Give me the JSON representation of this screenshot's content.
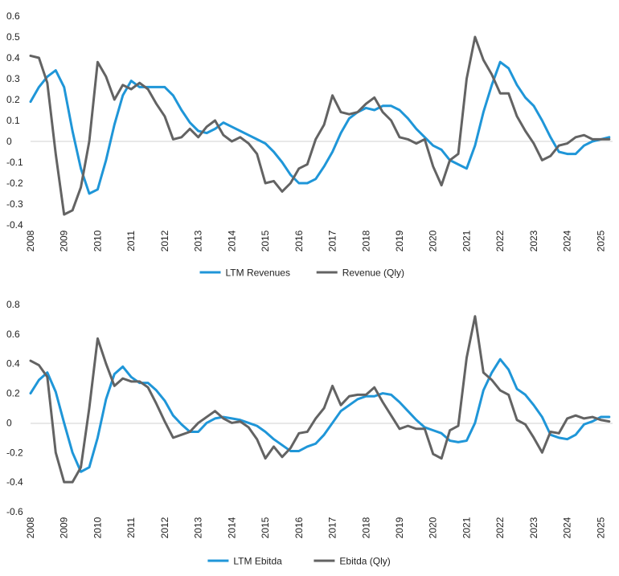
{
  "chart_data": [
    {
      "type": "line",
      "title": "",
      "xlabel": "",
      "ylabel": "",
      "ylim": [
        -0.4,
        0.6
      ],
      "yticks": [
        -0.4,
        -0.3,
        -0.2,
        -0.1,
        0,
        0.1,
        0.2,
        0.3,
        0.4,
        0.5,
        0.6
      ],
      "ytick_labels": [
        "-0.4",
        "-0.3",
        "-0.2",
        "-0.1",
        "0",
        "0.1",
        "0.2",
        "0.3",
        "0.4",
        "0.5",
        "0.6"
      ],
      "xlim": [
        2008.0,
        2025.35
      ],
      "xticks": [
        2008,
        2009,
        2010,
        2011,
        2012,
        2013,
        2014,
        2015,
        2016,
        2017,
        2018,
        2019,
        2020,
        2021,
        2022,
        2023,
        2024,
        2025
      ],
      "xtick_labels": [
        "2008",
        "2009",
        "2010",
        "2011",
        "2012",
        "2013",
        "2014",
        "2015",
        "2016",
        "2017",
        "2018",
        "2019",
        "2020",
        "2021",
        "2022",
        "2023",
        "2024",
        "2025"
      ],
      "grid": false,
      "legend_position": "bottom-center",
      "series": [
        {
          "name": "LTM Revenues",
          "color": "#1f96d8",
          "x": [
            2008.0,
            2008.25,
            2008.5,
            2008.75,
            2009.0,
            2009.25,
            2009.5,
            2009.75,
            2010.0,
            2010.25,
            2010.5,
            2010.75,
            2011.0,
            2011.25,
            2011.5,
            2011.75,
            2012.0,
            2012.25,
            2012.5,
            2012.75,
            2013.0,
            2013.25,
            2013.5,
            2013.75,
            2014.0,
            2014.25,
            2014.5,
            2014.75,
            2015.0,
            2015.25,
            2015.5,
            2015.75,
            2016.0,
            2016.25,
            2016.5,
            2016.75,
            2017.0,
            2017.25,
            2017.5,
            2017.75,
            2018.0,
            2018.25,
            2018.5,
            2018.75,
            2019.0,
            2019.25,
            2019.5,
            2019.75,
            2020.0,
            2020.25,
            2020.5,
            2020.75,
            2021.0,
            2021.25,
            2021.5,
            2021.75,
            2022.0,
            2022.25,
            2022.5,
            2022.75,
            2023.0,
            2023.25,
            2023.5,
            2023.75,
            2024.0,
            2024.25,
            2024.5,
            2024.75,
            2025.0,
            2025.25
          ],
          "y": [
            0.19,
            0.26,
            0.31,
            0.34,
            0.26,
            0.05,
            -0.13,
            -0.25,
            -0.23,
            -0.09,
            0.08,
            0.22,
            0.29,
            0.26,
            0.26,
            0.26,
            0.26,
            0.22,
            0.15,
            0.09,
            0.05,
            0.04,
            0.06,
            0.09,
            0.07,
            0.05,
            0.03,
            0.01,
            -0.01,
            -0.05,
            -0.1,
            -0.16,
            -0.2,
            -0.2,
            -0.18,
            -0.12,
            -0.05,
            0.04,
            0.11,
            0.14,
            0.16,
            0.15,
            0.17,
            0.17,
            0.15,
            0.11,
            0.06,
            0.02,
            -0.02,
            -0.04,
            -0.09,
            -0.11,
            -0.13,
            -0.02,
            0.14,
            0.27,
            0.38,
            0.35,
            0.27,
            0.21,
            0.17,
            0.1,
            0.02,
            -0.05,
            -0.06,
            -0.06,
            -0.02,
            0.0,
            0.01,
            0.02
          ]
        },
        {
          "name": "Revenue (Qly)",
          "color": "#636363",
          "x": [
            2008.0,
            2008.25,
            2008.5,
            2008.75,
            2009.0,
            2009.25,
            2009.5,
            2009.75,
            2010.0,
            2010.25,
            2010.5,
            2010.75,
            2011.0,
            2011.25,
            2011.5,
            2011.75,
            2012.0,
            2012.25,
            2012.5,
            2012.75,
            2013.0,
            2013.25,
            2013.5,
            2013.75,
            2014.0,
            2014.25,
            2014.5,
            2014.75,
            2015.0,
            2015.25,
            2015.5,
            2015.75,
            2016.0,
            2016.25,
            2016.5,
            2016.75,
            2017.0,
            2017.25,
            2017.5,
            2017.75,
            2018.0,
            2018.25,
            2018.5,
            2018.75,
            2019.0,
            2019.25,
            2019.5,
            2019.75,
            2020.0,
            2020.25,
            2020.5,
            2020.75,
            2021.0,
            2021.25,
            2021.5,
            2021.75,
            2022.0,
            2022.25,
            2022.5,
            2022.75,
            2023.0,
            2023.25,
            2023.5,
            2023.75,
            2024.0,
            2024.25,
            2024.5,
            2024.75,
            2025.0,
            2025.25
          ],
          "y": [
            0.41,
            0.4,
            0.28,
            -0.06,
            -0.35,
            -0.33,
            -0.22,
            0.0,
            0.38,
            0.31,
            0.2,
            0.27,
            0.25,
            0.28,
            0.25,
            0.18,
            0.12,
            0.01,
            0.02,
            0.06,
            0.02,
            0.07,
            0.1,
            0.03,
            0.0,
            0.02,
            -0.01,
            -0.06,
            -0.2,
            -0.19,
            -0.24,
            -0.2,
            -0.13,
            -0.11,
            0.01,
            0.08,
            0.22,
            0.14,
            0.13,
            0.14,
            0.18,
            0.21,
            0.14,
            0.1,
            0.02,
            0.01,
            -0.01,
            0.01,
            -0.12,
            -0.21,
            -0.09,
            -0.06,
            0.3,
            0.5,
            0.39,
            0.32,
            0.23,
            0.23,
            0.12,
            0.05,
            -0.01,
            -0.09,
            -0.07,
            -0.02,
            -0.01,
            0.02,
            0.03,
            0.01,
            0.01,
            0.01
          ]
        }
      ]
    },
    {
      "type": "line",
      "title": "",
      "xlabel": "",
      "ylabel": "",
      "ylim": [
        -0.6,
        0.8
      ],
      "yticks": [
        -0.6,
        -0.4,
        -0.2,
        0,
        0.2,
        0.4,
        0.6,
        0.8
      ],
      "ytick_labels": [
        "-0.6",
        "-0.4",
        "-0.2",
        "0",
        "0.2",
        "0.4",
        "0.6",
        "0.8"
      ],
      "xlim": [
        2008.0,
        2025.35
      ],
      "xticks": [
        2008,
        2009,
        2010,
        2011,
        2012,
        2013,
        2014,
        2015,
        2016,
        2017,
        2018,
        2019,
        2020,
        2021,
        2022,
        2023,
        2024,
        2025
      ],
      "xtick_labels": [
        "2008",
        "2009",
        "2010",
        "2011",
        "2012",
        "2013",
        "2014",
        "2015",
        "2016",
        "2017",
        "2018",
        "2019",
        "2020",
        "2021",
        "2022",
        "2023",
        "2024",
        "2025"
      ],
      "grid": false,
      "legend_position": "bottom-center",
      "series": [
        {
          "name": "LTM Ebitda",
          "color": "#1f96d8",
          "x": [
            2008.0,
            2008.25,
            2008.5,
            2008.75,
            2009.0,
            2009.25,
            2009.5,
            2009.75,
            2010.0,
            2010.25,
            2010.5,
            2010.75,
            2011.0,
            2011.25,
            2011.5,
            2011.75,
            2012.0,
            2012.25,
            2012.5,
            2012.75,
            2013.0,
            2013.25,
            2013.5,
            2013.75,
            2014.0,
            2014.25,
            2014.5,
            2014.75,
            2015.0,
            2015.25,
            2015.5,
            2015.75,
            2016.0,
            2016.25,
            2016.5,
            2016.75,
            2017.0,
            2017.25,
            2017.5,
            2017.75,
            2018.0,
            2018.25,
            2018.5,
            2018.75,
            2019.0,
            2019.25,
            2019.5,
            2019.75,
            2020.0,
            2020.25,
            2020.5,
            2020.75,
            2021.0,
            2021.25,
            2021.5,
            2021.75,
            2022.0,
            2022.25,
            2022.5,
            2022.75,
            2023.0,
            2023.25,
            2023.5,
            2023.75,
            2024.0,
            2024.25,
            2024.5,
            2024.75,
            2025.0,
            2025.25
          ],
          "y": [
            0.2,
            0.29,
            0.34,
            0.21,
            0.0,
            -0.2,
            -0.33,
            -0.3,
            -0.1,
            0.16,
            0.33,
            0.38,
            0.31,
            0.27,
            0.27,
            0.22,
            0.15,
            0.05,
            -0.01,
            -0.06,
            -0.06,
            0.0,
            0.03,
            0.04,
            0.03,
            0.02,
            0.0,
            -0.02,
            -0.06,
            -0.11,
            -0.15,
            -0.19,
            -0.19,
            -0.16,
            -0.14,
            -0.08,
            0.0,
            0.08,
            0.12,
            0.16,
            0.18,
            0.18,
            0.2,
            0.19,
            0.14,
            0.08,
            0.02,
            -0.03,
            -0.05,
            -0.07,
            -0.12,
            -0.13,
            -0.12,
            0.0,
            0.22,
            0.34,
            0.43,
            0.36,
            0.23,
            0.19,
            0.12,
            0.04,
            -0.08,
            -0.1,
            -0.11,
            -0.08,
            -0.01,
            0.01,
            0.04,
            0.04
          ]
        },
        {
          "name": "Ebitda (Qly)",
          "color": "#636363",
          "x": [
            2008.0,
            2008.25,
            2008.5,
            2008.75,
            2009.0,
            2009.25,
            2009.5,
            2009.75,
            2010.0,
            2010.25,
            2010.5,
            2010.75,
            2011.0,
            2011.25,
            2011.5,
            2011.75,
            2012.0,
            2012.25,
            2012.5,
            2012.75,
            2013.0,
            2013.25,
            2013.5,
            2013.75,
            2014.0,
            2014.25,
            2014.5,
            2014.75,
            2015.0,
            2015.25,
            2015.5,
            2015.75,
            2016.0,
            2016.25,
            2016.5,
            2016.75,
            2017.0,
            2017.25,
            2017.5,
            2017.75,
            2018.0,
            2018.25,
            2018.5,
            2018.75,
            2019.0,
            2019.25,
            2019.5,
            2019.75,
            2020.0,
            2020.25,
            2020.5,
            2020.75,
            2021.0,
            2021.25,
            2021.5,
            2021.75,
            2022.0,
            2022.25,
            2022.5,
            2022.75,
            2023.0,
            2023.25,
            2023.5,
            2023.75,
            2024.0,
            2024.25,
            2024.5,
            2024.75,
            2025.0,
            2025.25
          ],
          "y": [
            0.42,
            0.39,
            0.31,
            -0.2,
            -0.4,
            -0.4,
            -0.3,
            0.1,
            0.57,
            0.4,
            0.25,
            0.3,
            0.28,
            0.28,
            0.24,
            0.13,
            0.01,
            -0.1,
            -0.08,
            -0.06,
            0.0,
            0.04,
            0.08,
            0.03,
            0.0,
            0.01,
            -0.03,
            -0.11,
            -0.24,
            -0.16,
            -0.23,
            -0.17,
            -0.07,
            -0.06,
            0.03,
            0.1,
            0.25,
            0.12,
            0.18,
            0.19,
            0.19,
            0.24,
            0.14,
            0.05,
            -0.04,
            -0.02,
            -0.04,
            -0.04,
            -0.21,
            -0.24,
            -0.05,
            -0.02,
            0.44,
            0.72,
            0.34,
            0.29,
            0.22,
            0.19,
            0.02,
            -0.01,
            -0.1,
            -0.2,
            -0.06,
            -0.07,
            0.03,
            0.05,
            0.03,
            0.04,
            0.02,
            0.01
          ]
        }
      ]
    }
  ]
}
